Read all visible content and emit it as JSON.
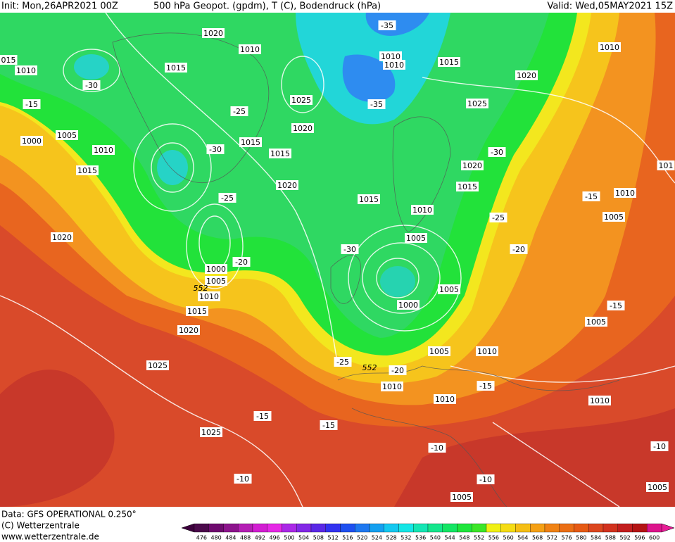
{
  "header": {
    "init": "Init: Mon,26APR2021 00Z",
    "title": "500 hPa Geopot. (gpdm), T (C), Bodendruck (hPa)",
    "valid": "Valid: Wed,05MAY2021 15Z"
  },
  "footer": {
    "source": "Data: GFS OPERATIONAL 0.250°",
    "copyright": "(C) Wetterzentrale",
    "url": "www.wetterzentrale.de"
  },
  "colorbar": {
    "labels": [
      476,
      480,
      484,
      488,
      492,
      496,
      500,
      504,
      508,
      512,
      516,
      520,
      524,
      528,
      532,
      536,
      540,
      544,
      548,
      552,
      556,
      560,
      564,
      568,
      572,
      576,
      580,
      584,
      588,
      592,
      596,
      600
    ]
  },
  "map": {
    "isobar_labels": [
      "1020",
      "1010",
      "015",
      "1010",
      "1015",
      "1025",
      "1020",
      "1015",
      "1015",
      "1020",
      "1015",
      "1010",
      "1005",
      "1000",
      "1005",
      "1010",
      "1015",
      "1020",
      "1025",
      "1025",
      "1005",
      "1000",
      "1010",
      "1015",
      "1020",
      "1010",
      "1010",
      "1015",
      "1020",
      "1025",
      "1020",
      "1015",
      "1010",
      "1005",
      "1005",
      "1000",
      "1005",
      "1005",
      "1010",
      "1010",
      "1010",
      "1010",
      "1010",
      "1005",
      "1005",
      "101"
    ],
    "temperature_labels": [
      "-35",
      "-30",
      "-15",
      "-25",
      "-30",
      "-25",
      "-20",
      "-35",
      "-30",
      "-25",
      "-30",
      "-20",
      "-15",
      "-15",
      "-25",
      "-20",
      "-15",
      "-15",
      "-15",
      "-10",
      "-10",
      "-10",
      "-10"
    ],
    "contour_labels": [
      "552",
      "552"
    ]
  }
}
